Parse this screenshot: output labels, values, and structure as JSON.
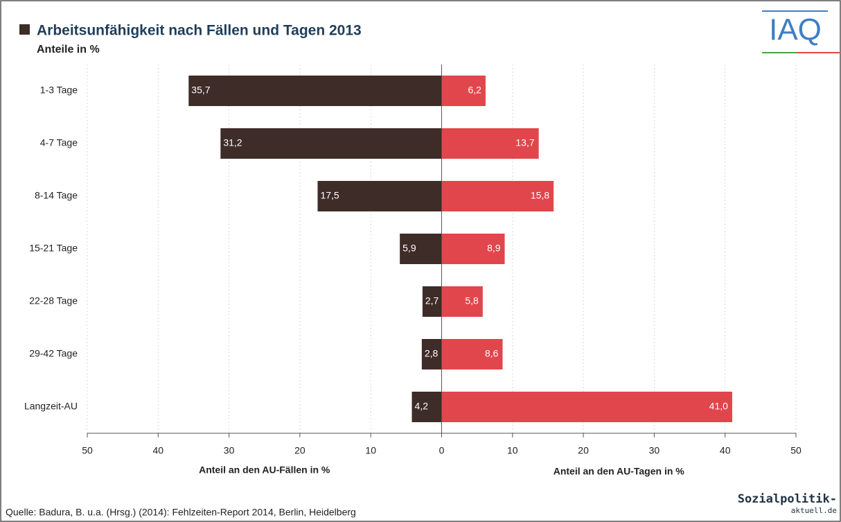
{
  "chart_data": {
    "type": "butterfly",
    "title": "Arbeitsunfähigkeit nach Fällen und Tagen 2013",
    "subtitle": "Anteile in %",
    "categories": [
      "1-3 Tage",
      "4-7 Tage",
      "8-14 Tage",
      "15-21 Tage",
      "22-28 Tage",
      "29-42 Tage",
      "Langzeit-AU"
    ],
    "series": [
      {
        "side": "left",
        "color": "#3e2c29",
        "values": [
          35.7,
          31.2,
          17.5,
          5.9,
          2.7,
          2.8,
          4.2
        ],
        "value_labels": [
          "35,7",
          "31,2",
          "17,5",
          "5,9",
          "2,7",
          "2,8",
          "4,2"
        ]
      },
      {
        "side": "right",
        "color": "#e0464b",
        "values": [
          6.2,
          13.7,
          15.8,
          8.9,
          5.8,
          8.6,
          41.0
        ],
        "value_labels": [
          "6,2",
          "13,7",
          "15,8",
          "8,9",
          "5,8",
          "8,6",
          "41,0"
        ]
      }
    ],
    "xlim": [
      -50,
      50
    ],
    "xticks": [
      {
        "value": -50,
        "label": "50"
      },
      {
        "value": -40,
        "label": "40"
      },
      {
        "value": -30,
        "label": "30"
      },
      {
        "value": -20,
        "label": "20"
      },
      {
        "value": -10,
        "label": "10"
      },
      0,
      10,
      20,
      30,
      40,
      50
    ],
    "xlabel_left": "Anteil an den AU-Fällen in %",
    "xlabel_right": "Anteil an den AU-Tagen in %",
    "grid": true,
    "source": "Quelle: Badura, B. u.a. (Hrsg.) (2014): Fehlzeiten-Report 2014, Berlin, Heidelberg",
    "logo_top": "IAQ",
    "logo_bottom": [
      "Sozialpolitik-",
      "aktuell.de"
    ]
  }
}
